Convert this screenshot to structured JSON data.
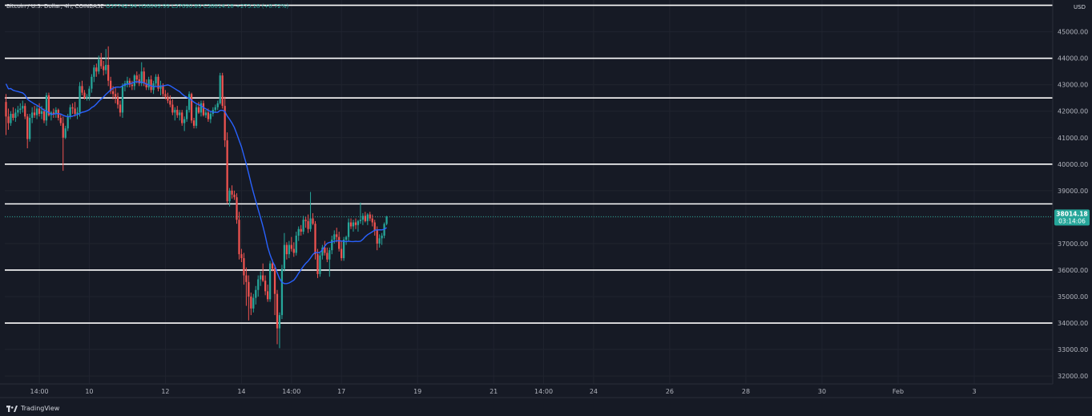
{
  "legend": {
    "symbol": "Bitcoin / U.S. Dollar, 4h, COINBASE",
    "open": "O37742.94",
    "high": "H38049.99",
    "low": "L37690.89",
    "close": "C38014.18",
    "change": "+273.18 (+0.72%)"
  },
  "currency": "USD",
  "branding": "TradingView",
  "colors": {
    "background": "#161a25",
    "up": "#26a69a",
    "down": "#ef5350",
    "ma": "#2962ff",
    "level_line": "#ffffff",
    "price_tag": "#26a69a"
  },
  "price_label": {
    "price": "38014.18",
    "countdown": "03:14:06"
  },
  "chart_data": {
    "type": "candlestick",
    "ylim": [
      31700,
      46200
    ],
    "y_ticks": [
      32000,
      33000,
      34000,
      35000,
      36000,
      37000,
      38000,
      39000,
      40000,
      41000,
      42000,
      43000,
      44000,
      45000,
      46000
    ],
    "y_tick_labels": [
      "32000.00",
      "33000.00",
      "34000.00",
      "35000.00",
      "36000.00",
      "37000.00",
      "38000.00",
      "39000.00",
      "40000.00",
      "41000.00",
      "42000.00",
      "43000.00",
      "44000.00",
      "45000.00",
      "46000.00"
    ],
    "x_ticks": [
      {
        "label": "14:00",
        "x": 14
      },
      {
        "label": "10",
        "x": 35
      },
      {
        "label": "12",
        "x": 67
      },
      {
        "label": "14",
        "x": 99
      },
      {
        "label": "14:00",
        "x": 120
      },
      {
        "label": "17",
        "x": 141
      },
      {
        "label": "19",
        "x": 173
      },
      {
        "label": "21",
        "x": 205
      },
      {
        "label": "14:00",
        "x": 226
      },
      {
        "label": "24",
        "x": 247
      },
      {
        "label": "26",
        "x": 279
      },
      {
        "label": "28",
        "x": 311
      },
      {
        "label": "30",
        "x": 343
      },
      {
        "label": "Feb",
        "x": 375
      },
      {
        "label": "3",
        "x": 407
      }
    ],
    "x_range": [
      -0.5,
      440
    ],
    "levels": [
      {
        "price": 46000,
        "label": "46000.00"
      },
      {
        "price": 44000,
        "label": "44000.00"
      },
      {
        "price": 42500,
        "label": "42500.00"
      },
      {
        "price": 40000,
        "label": "40000.00"
      },
      {
        "price": 38500,
        "label": "38500.00"
      },
      {
        "price": 36000,
        "label": "36000.00"
      },
      {
        "price": 34000,
        "label": "34000.00"
      }
    ],
    "current_price": 38014.18,
    "ma_period": 20,
    "candles": [
      [
        42350,
        42650,
        41100,
        41800
      ],
      [
        41800,
        42100,
        41300,
        41550
      ],
      [
        41550,
        42000,
        41450,
        41900
      ],
      [
        41900,
        42150,
        41650,
        41750
      ],
      [
        41750,
        42100,
        41600,
        41950
      ],
      [
        41950,
        42200,
        41800,
        42050
      ],
      [
        42050,
        42300,
        41900,
        42100
      ],
      [
        42100,
        42400,
        41950,
        42200
      ],
      [
        42200,
        42300,
        41700,
        41800
      ],
      [
        41800,
        41900,
        40600,
        40950
      ],
      [
        40950,
        41900,
        40850,
        41750
      ],
      [
        41750,
        42150,
        41550,
        41950
      ],
      [
        41950,
        42200,
        41750,
        41850
      ],
      [
        41850,
        42250,
        41700,
        42100
      ],
      [
        42100,
        42300,
        41800,
        41900
      ],
      [
        41900,
        42200,
        41700,
        42000
      ],
      [
        42000,
        42100,
        41550,
        41650
      ],
      [
        41650,
        42700,
        41450,
        42600
      ],
      [
        42600,
        42700,
        41800,
        41850
      ],
      [
        41850,
        42000,
        41650,
        41950
      ],
      [
        41950,
        42100,
        41750,
        41900
      ],
      [
        41900,
        42150,
        41750,
        42050
      ],
      [
        42050,
        42100,
        41650,
        41750
      ],
      [
        41750,
        41900,
        41450,
        41550
      ],
      [
        41550,
        41800,
        39750,
        41000
      ],
      [
        41000,
        41450,
        40950,
        41350
      ],
      [
        41350,
        41900,
        41250,
        41800
      ],
      [
        41800,
        42250,
        41700,
        42150
      ],
      [
        42150,
        42300,
        41900,
        42100
      ],
      [
        42100,
        42350,
        41800,
        41900
      ],
      [
        41900,
        42150,
        41700,
        41950
      ],
      [
        41950,
        43100,
        41800,
        42950
      ],
      [
        42950,
        43150,
        42600,
        42700
      ],
      [
        42700,
        42800,
        42450,
        42500
      ],
      [
        42500,
        42650,
        42400,
        42550
      ],
      [
        42550,
        42950,
        42400,
        42850
      ],
      [
        42850,
        43400,
        42700,
        43300
      ],
      [
        43300,
        43750,
        43100,
        43650
      ],
      [
        43650,
        43800,
        43300,
        43500
      ],
      [
        43500,
        44100,
        43400,
        43950
      ],
      [
        43950,
        44200,
        43600,
        43700
      ],
      [
        43700,
        43900,
        43350,
        43550
      ],
      [
        43550,
        44350,
        43400,
        43750
      ],
      [
        43750,
        44450,
        42950,
        43150
      ],
      [
        43150,
        43300,
        42650,
        42750
      ],
      [
        42750,
        42950,
        42450,
        42650
      ],
      [
        42650,
        42900,
        42300,
        42550
      ],
      [
        42550,
        42700,
        42100,
        42250
      ],
      [
        42250,
        42400,
        41800,
        41950
      ],
      [
        41950,
        43050,
        41750,
        42950
      ],
      [
        42950,
        43150,
        42750,
        43050
      ],
      [
        43050,
        43300,
        42900,
        43150
      ],
      [
        43150,
        43250,
        42900,
        43000
      ],
      [
        43000,
        43150,
        42800,
        42950
      ],
      [
        42950,
        43400,
        42800,
        43350
      ],
      [
        43350,
        43500,
        43050,
        43200
      ],
      [
        43200,
        43400,
        42950,
        43050
      ],
      [
        43050,
        43850,
        42950,
        43500
      ],
      [
        43500,
        43650,
        42950,
        43050
      ],
      [
        43050,
        43200,
        42800,
        42900
      ],
      [
        42900,
        43300,
        42800,
        43200
      ],
      [
        43200,
        43350,
        42700,
        42800
      ],
      [
        42800,
        43150,
        42650,
        43050
      ],
      [
        43050,
        43400,
        42950,
        43300
      ],
      [
        43300,
        43400,
        42750,
        42850
      ],
      [
        42850,
        43150,
        42600,
        42950
      ],
      [
        42950,
        43050,
        42550,
        42650
      ],
      [
        42650,
        42800,
        42450,
        42550
      ],
      [
        42550,
        42700,
        42300,
        42400
      ],
      [
        42400,
        42600,
        42150,
        42250
      ],
      [
        42250,
        42450,
        41850,
        41950
      ],
      [
        41950,
        42150,
        41650,
        42050
      ],
      [
        42050,
        42200,
        41750,
        41850
      ],
      [
        41850,
        42050,
        41650,
        41950
      ],
      [
        41950,
        42050,
        41450,
        41550
      ],
      [
        41550,
        41800,
        41250,
        41700
      ],
      [
        41700,
        42200,
        41600,
        42050
      ],
      [
        42050,
        42750,
        41950,
        42650
      ],
      [
        42650,
        42700,
        41550,
        41650
      ],
      [
        41650,
        41750,
        41350,
        41450
      ],
      [
        41450,
        42250,
        41350,
        42150
      ],
      [
        42150,
        42350,
        41900,
        41950
      ],
      [
        41950,
        42400,
        41800,
        42300
      ],
      [
        42300,
        42400,
        41800,
        41850
      ],
      [
        41850,
        42050,
        41750,
        41950
      ],
      [
        41950,
        42100,
        41600,
        41700
      ],
      [
        41700,
        42000,
        41550,
        41900
      ],
      [
        41900,
        42150,
        41800,
        42050
      ],
      [
        42050,
        42250,
        41950,
        42150
      ],
      [
        42150,
        42400,
        42050,
        42300
      ],
      [
        42300,
        43450,
        42250,
        43350
      ],
      [
        43350,
        43450,
        42100,
        42200
      ],
      [
        42200,
        42550,
        40650,
        40900
      ],
      [
        40900,
        41200,
        38500,
        38600
      ],
      [
        38600,
        39100,
        38400,
        39000
      ],
      [
        39000,
        39200,
        38700,
        38850
      ],
      [
        38850,
        39000,
        38650,
        38750
      ],
      [
        38750,
        38900,
        37750,
        37900
      ],
      [
        37900,
        38200,
        36400,
        36600
      ],
      [
        36600,
        36800,
        36300,
        36450
      ],
      [
        36450,
        36650,
        35450,
        35800
      ],
      [
        35800,
        36100,
        34650,
        35550
      ],
      [
        35550,
        35800,
        34100,
        35000
      ],
      [
        35000,
        35150,
        34300,
        34550
      ],
      [
        34550,
        35100,
        34400,
        34950
      ],
      [
        34950,
        35400,
        34700,
        35250
      ],
      [
        35250,
        35800,
        35000,
        35650
      ],
      [
        35650,
        35950,
        35400,
        35800
      ],
      [
        35800,
        36250,
        35550,
        35600
      ],
      [
        35600,
        35800,
        35050,
        35200
      ],
      [
        35200,
        35450,
        34800,
        34900
      ],
      [
        34900,
        36350,
        34800,
        36250
      ],
      [
        36250,
        36400,
        35950,
        36050
      ],
      [
        36050,
        36200,
        34300,
        35100
      ],
      [
        35100,
        35250,
        33200,
        33800
      ],
      [
        33800,
        34400,
        33050,
        34300
      ],
      [
        34300,
        36200,
        34150,
        36050
      ],
      [
        36050,
        37400,
        35950,
        36950
      ],
      [
        36950,
        37050,
        36400,
        36600
      ],
      [
        36600,
        37100,
        36450,
        36950
      ],
      [
        36950,
        37250,
        36700,
        36800
      ],
      [
        36800,
        37050,
        36500,
        36650
      ],
      [
        36650,
        37450,
        36550,
        37300
      ],
      [
        37300,
        37650,
        37100,
        37550
      ],
      [
        37550,
        37700,
        37300,
        37450
      ],
      [
        37450,
        38050,
        37350,
        37900
      ],
      [
        37900,
        38000,
        37600,
        37850
      ],
      [
        37850,
        38100,
        37400,
        37550
      ],
      [
        37550,
        38950,
        37450,
        37950
      ],
      [
        37950,
        38150,
        37700,
        37750
      ],
      [
        37750,
        37850,
        36400,
        36600
      ],
      [
        36600,
        36800,
        35700,
        35850
      ],
      [
        35850,
        36650,
        35750,
        36550
      ],
      [
        36550,
        36950,
        36400,
        36850
      ],
      [
        36850,
        37100,
        36550,
        36650
      ],
      [
        36650,
        36850,
        36300,
        36400
      ],
      [
        36400,
        36850,
        35750,
        36750
      ],
      [
        36750,
        37300,
        36600,
        37150
      ],
      [
        37150,
        37500,
        37000,
        37350
      ],
      [
        37350,
        37600,
        37050,
        37250
      ],
      [
        37250,
        37450,
        36700,
        36800
      ],
      [
        36800,
        37100,
        36350,
        36450
      ],
      [
        36450,
        37250,
        36350,
        37150
      ],
      [
        37150,
        37300,
        36950,
        37250
      ],
      [
        37250,
        37950,
        37100,
        37800
      ],
      [
        37800,
        37950,
        37550,
        37650
      ],
      [
        37650,
        37900,
        37450,
        37800
      ],
      [
        37800,
        37950,
        37550,
        37700
      ],
      [
        37700,
        37900,
        37450,
        37850
      ],
      [
        37850,
        38550,
        37750,
        37900
      ],
      [
        37900,
        38150,
        37700,
        38050
      ],
      [
        38050,
        38200,
        37800,
        37850
      ],
      [
        37850,
        38150,
        37700,
        38100
      ],
      [
        38100,
        38200,
        37850,
        37950
      ],
      [
        37950,
        38100,
        37650,
        37800
      ],
      [
        37800,
        37900,
        37300,
        37500
      ],
      [
        37500,
        37650,
        36750,
        37000
      ],
      [
        37000,
        37350,
        36850,
        37200
      ],
      [
        37200,
        37400,
        36950,
        37300
      ],
      [
        37300,
        37800,
        37200,
        37742.94
      ],
      [
        37742.94,
        38049.99,
        37690.89,
        38014.18
      ]
    ]
  }
}
